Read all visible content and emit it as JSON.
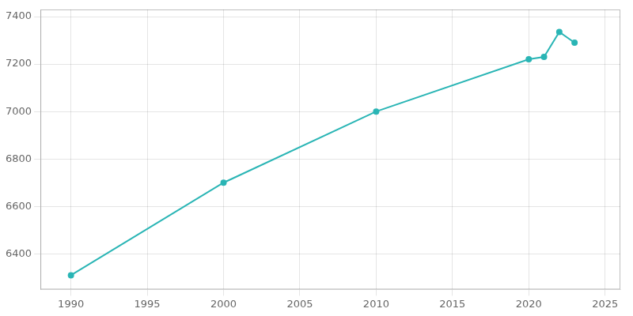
{
  "chart_data": {
    "type": "line",
    "x": [
      1990,
      2000,
      2010,
      2020,
      2021,
      2022,
      2023
    ],
    "values": [
      6310,
      6700,
      7000,
      7220,
      7230,
      7335,
      7290
    ],
    "color": "#2ab5b5",
    "marker": "circle",
    "xlim": [
      1988,
      2026
    ],
    "xticks": [
      1990,
      1995,
      2000,
      2005,
      2010,
      2015,
      2020,
      2025
    ],
    "ylim": [
      6250,
      7430
    ],
    "yticks": [
      6400,
      6600,
      6800,
      7000,
      7200,
      7400
    ],
    "grid": true
  }
}
